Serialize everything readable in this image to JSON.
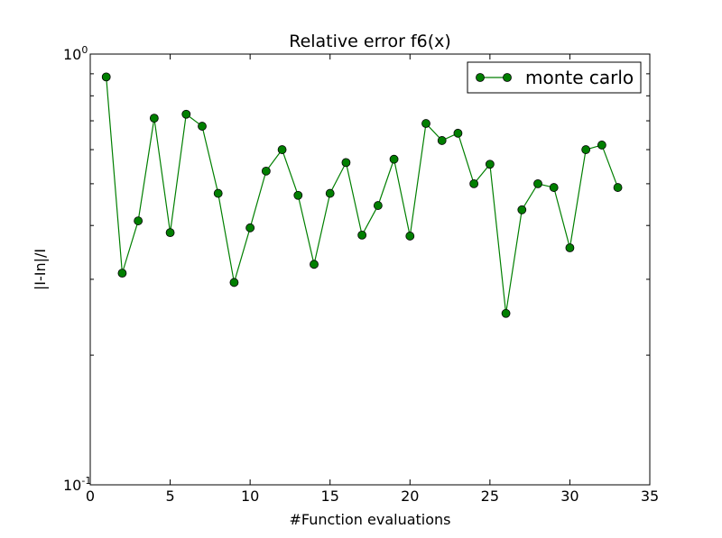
{
  "chart_data": {
    "type": "line",
    "title": "Relative error f6(x)",
    "xlabel": "#Function evaluations",
    "ylabel": "|I-In|/I",
    "xlim": [
      0,
      35
    ],
    "ylim": [
      0.1,
      1.0
    ],
    "yscale": "log",
    "x_ticks": [
      0,
      5,
      10,
      15,
      20,
      25,
      30,
      35
    ],
    "y_tick_labels": [
      {
        "base": "10",
        "exp": "-1",
        "value": 0.1
      },
      {
        "base": "10",
        "exp": "0",
        "value": 1.0
      }
    ],
    "grid": false,
    "legend_position": "top-right",
    "series": [
      {
        "name": "monte carlo",
        "color": "#007f00",
        "marker": "circle",
        "x": [
          1,
          2,
          3,
          4,
          5,
          6,
          7,
          8,
          9,
          10,
          11,
          12,
          13,
          14,
          15,
          16,
          17,
          18,
          19,
          20,
          21,
          22,
          23,
          24,
          25,
          26,
          27,
          28,
          29,
          30,
          31,
          32,
          33
        ],
        "values": [
          0.885,
          0.31,
          0.41,
          0.71,
          0.385,
          0.725,
          0.68,
          0.475,
          0.295,
          0.395,
          0.535,
          0.6,
          0.47,
          0.325,
          0.475,
          0.56,
          0.38,
          0.445,
          0.57,
          0.378,
          0.69,
          0.63,
          0.655,
          0.5,
          0.555,
          0.25,
          0.435,
          0.5,
          0.49,
          0.355,
          0.6,
          0.615,
          0.49
        ]
      }
    ]
  }
}
